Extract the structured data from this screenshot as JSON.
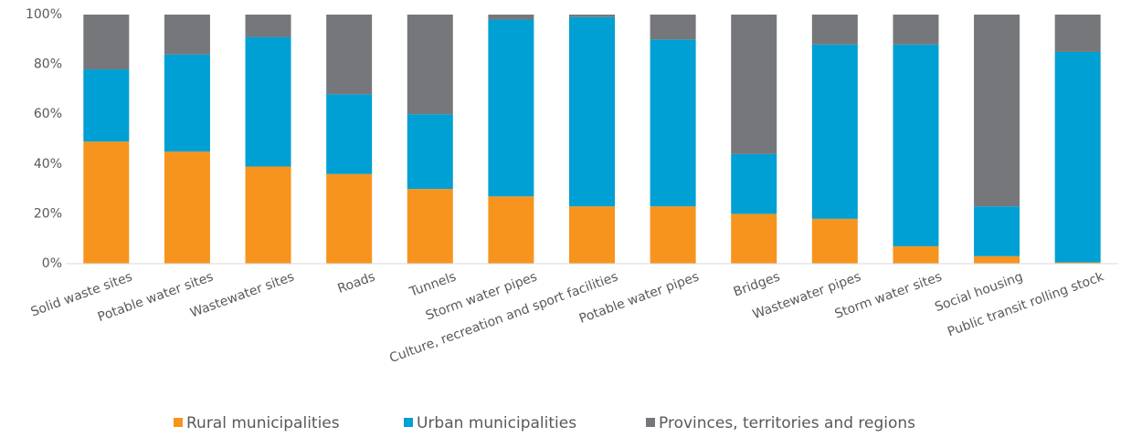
{
  "chart_data": {
    "type": "stacked_bar",
    "categories": [
      "Solid waste sites",
      "Potable water sites",
      "Wastewater sites",
      "Roads",
      "Tunnels",
      "Storm water pipes",
      "Culture, recreation and sport facilities",
      "Potable water pipes",
      "Bridges",
      "Wastewater pipes",
      "Storm water sites",
      "Social housing",
      "Public transit rolling stock"
    ],
    "series": [
      {
        "name": "Rural municipalities",
        "color": "#f7941d",
        "values": [
          49,
          45,
          39,
          36,
          30,
          27,
          23,
          23,
          20,
          18,
          7,
          3,
          0.5
        ]
      },
      {
        "name": "Urban municipalities",
        "color": "#009fd4",
        "values": [
          29,
          39,
          52,
          32,
          30,
          71,
          76,
          67,
          24,
          70,
          81,
          20,
          84.5
        ]
      },
      {
        "name": "Provinces, territories and regions",
        "color": "#76777a",
        "values": [
          22,
          16,
          9,
          32,
          40,
          2,
          1,
          10,
          56,
          12,
          12,
          77,
          15
        ]
      }
    ],
    "ylim": [
      0,
      100
    ],
    "yticks": [
      {
        "value": 0,
        "label": "0%"
      },
      {
        "value": 20,
        "label": "20%"
      },
      {
        "value": 40,
        "label": "40%"
      },
      {
        "value": 60,
        "label": "60%"
      },
      {
        "value": 80,
        "label": "80%"
      },
      {
        "value": 100,
        "label": "100%"
      }
    ],
    "grid": false
  }
}
